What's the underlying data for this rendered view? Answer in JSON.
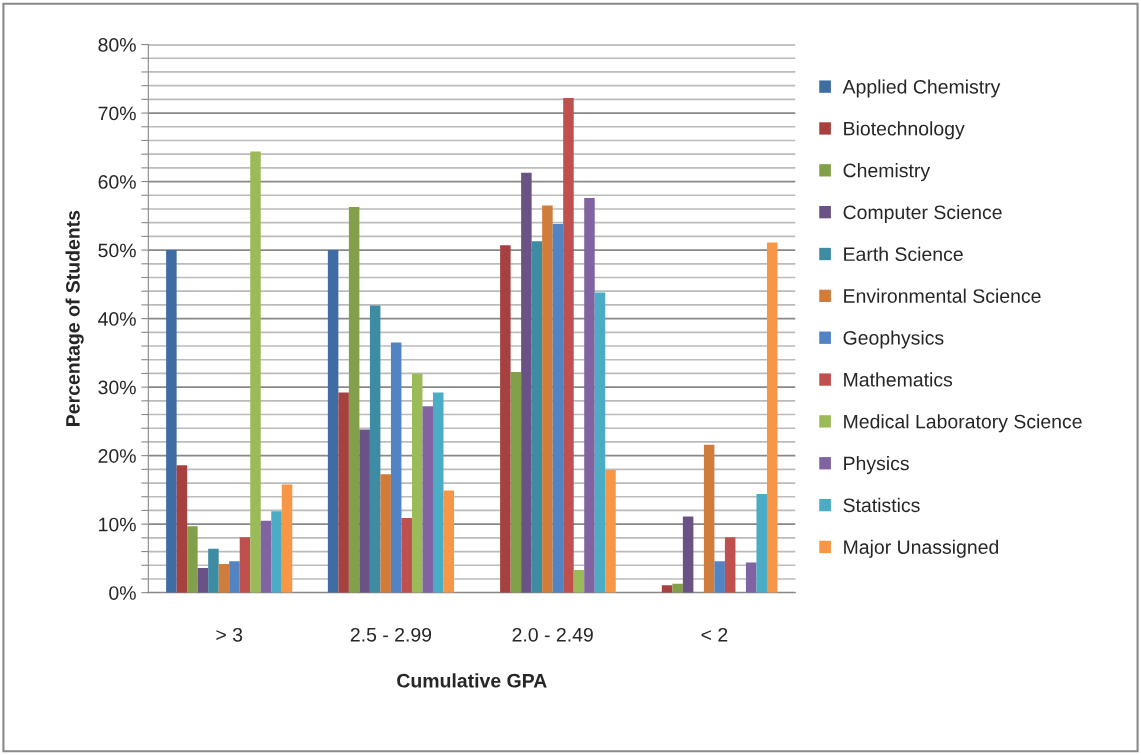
{
  "chart_data": {
    "type": "bar",
    "xlabel": "Cumulative GPA",
    "ylabel": "Percentage of Students",
    "categories": [
      "> 3",
      "2.5 - 2.99",
      "2.0 - 2.49",
      "< 2"
    ],
    "series": [
      {
        "name": "Applied Chemistry",
        "color": "#3f6ca3",
        "values": [
          50,
          50,
          null,
          null
        ]
      },
      {
        "name": "Biotechnology",
        "color": "#a6413f",
        "values": [
          18.6,
          29.2,
          50.7,
          1.1
        ]
      },
      {
        "name": "Chemistry",
        "color": "#82a04a",
        "values": [
          9.7,
          56.3,
          32.2,
          1.3
        ]
      },
      {
        "name": "Computer Science",
        "color": "#6a5287",
        "values": [
          3.6,
          23.8,
          61.3,
          11.1
        ]
      },
      {
        "name": "Earth Science",
        "color": "#3d8ca4",
        "values": [
          6.4,
          41.9,
          51.3,
          null
        ]
      },
      {
        "name": "Environmental Science",
        "color": "#d07c3a",
        "values": [
          4.2,
          17.3,
          56.5,
          21.6
        ]
      },
      {
        "name": "Geophysics",
        "color": "#5283c2",
        "values": [
          4.6,
          36.5,
          53.8,
          4.6
        ]
      },
      {
        "name": "Mathematics",
        "color": "#c0504d",
        "values": [
          8.1,
          10.9,
          72.2,
          8.1
        ]
      },
      {
        "name": "Medical Laboratory Science",
        "color": "#9bbb59",
        "values": [
          64.4,
          32.0,
          3.3,
          null
        ]
      },
      {
        "name": "Physics",
        "color": "#8064a2",
        "values": [
          10.5,
          27.2,
          57.6,
          4.4
        ]
      },
      {
        "name": "Statistics",
        "color": "#4bacc6",
        "values": [
          11.9,
          29.2,
          43.8,
          14.4
        ]
      },
      {
        "name": "Major Unassigned",
        "color": "#f79646",
        "values": [
          15.8,
          14.9,
          17.9,
          51.1
        ]
      }
    ],
    "ylim": [
      0,
      80
    ],
    "yticks": [
      {
        "value": 0,
        "label": "0%"
      },
      {
        "value": 2,
        "label": null
      },
      {
        "value": 4,
        "label": null
      },
      {
        "value": 6,
        "label": null
      },
      {
        "value": 8,
        "label": null
      },
      {
        "value": 10,
        "label": "10%"
      },
      {
        "value": 12,
        "label": null
      },
      {
        "value": 14,
        "label": null
      },
      {
        "value": 16,
        "label": null
      },
      {
        "value": 18,
        "label": null
      },
      {
        "value": 20,
        "label": "20%"
      },
      {
        "value": 22,
        "label": null
      },
      {
        "value": 24,
        "label": null
      },
      {
        "value": 26,
        "label": null
      },
      {
        "value": 28,
        "label": null
      },
      {
        "value": 30,
        "label": "30%"
      },
      {
        "value": 32,
        "label": null
      },
      {
        "value": 34,
        "label": null
      },
      {
        "value": 36,
        "label": null
      },
      {
        "value": 38,
        "label": null
      },
      {
        "value": 40,
        "label": "40%"
      },
      {
        "value": 42,
        "label": null
      },
      {
        "value": 44,
        "label": null
      },
      {
        "value": 46,
        "label": null
      },
      {
        "value": 48,
        "label": null
      },
      {
        "value": 50,
        "label": "50%"
      },
      {
        "value": 52,
        "label": null
      },
      {
        "value": 54,
        "label": null
      },
      {
        "value": 56,
        "label": null
      },
      {
        "value": 58,
        "label": null
      },
      {
        "value": 60,
        "label": "60%"
      },
      {
        "value": 62,
        "label": null
      },
      {
        "value": 64,
        "label": null
      },
      {
        "value": 66,
        "label": null
      },
      {
        "value": 68,
        "label": null
      },
      {
        "value": 70,
        "label": "70%"
      },
      {
        "value": 72,
        "label": null
      },
      {
        "value": 74,
        "label": null
      },
      {
        "value": 76,
        "label": null
      },
      {
        "value": 78,
        "label": null
      },
      {
        "value": 80,
        "label": "80%"
      }
    ],
    "grid": "y",
    "legend": "right"
  }
}
